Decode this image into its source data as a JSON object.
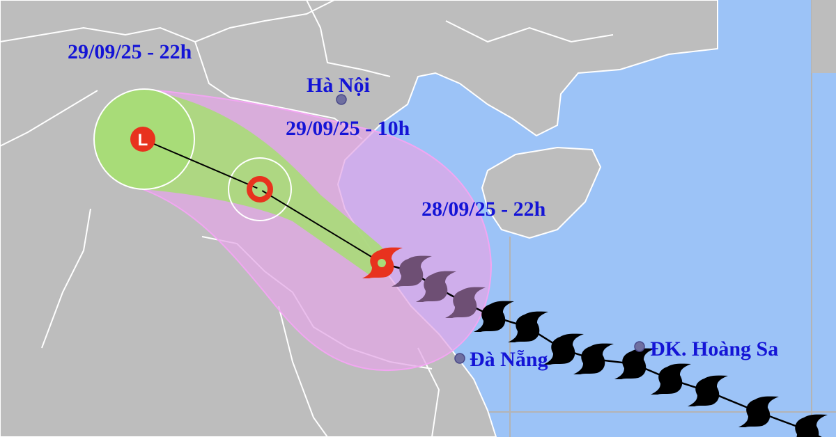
{
  "map": {
    "colors": {
      "sea": "#9cc3f7",
      "land": "#bdbdbd",
      "label": "#1414d6",
      "cone": "#e3a6e6",
      "wind_zone": "#a8dc78",
      "current_storm": "#e8321e",
      "past_track_recent": "#6e4f74",
      "past_track": "#000000"
    },
    "forecast_labels": [
      {
        "text": "29/09/25 - 22h"
      },
      {
        "text": "29/09/25 - 10h"
      },
      {
        "text": "28/09/25 - 22h"
      }
    ],
    "places": [
      {
        "name": "Hà Nội",
        "icon": "city-dot-icon"
      },
      {
        "name": "Đà Nẵng",
        "icon": "city-dot-icon"
      },
      {
        "name": "ĐK. Hoàng Sa",
        "icon": "city-dot-icon"
      }
    ],
    "forecast_symbols": [
      {
        "time": "29/09/25 - 22h",
        "symbol": "L",
        "icon": "low-pressure-icon"
      },
      {
        "time": "29/09/25 - 10h",
        "icon": "tropical-depression-icon"
      },
      {
        "time": "28/09/25 - 22h",
        "icon": "typhoon-current-icon"
      }
    ]
  }
}
